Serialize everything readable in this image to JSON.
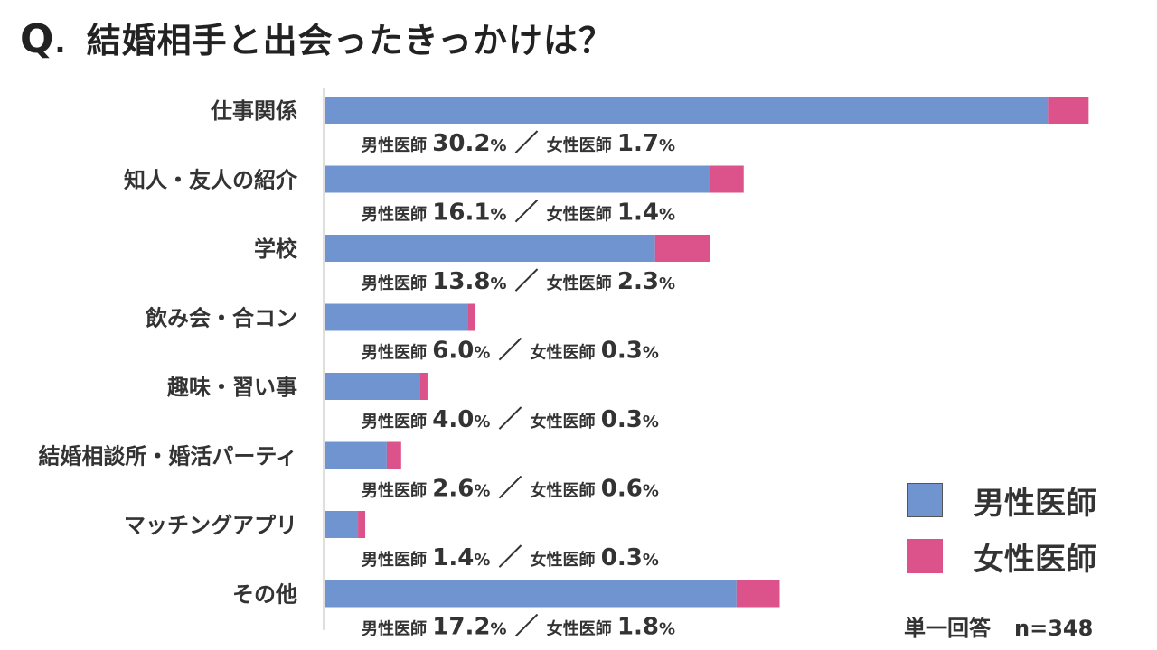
{
  "title": {
    "q": "Q",
    "dot": ".",
    "text": "結婚相手と出会ったきっかけは？"
  },
  "legend": [
    {
      "name": "男性医師",
      "color": "#6f94d0"
    },
    {
      "name": "女性医師",
      "color": "#dc528a"
    }
  ],
  "note": {
    "answer_type": "単一回答",
    "n": "n=348"
  },
  "chart_data": {
    "type": "bar",
    "orientation": "horizontal",
    "stacked": true,
    "categories": [
      "仕事関係",
      "知人・友人の紹介",
      "学校",
      "飲み会・合コン",
      "趣味・習い事",
      "結婚相談所・婚活パーティ",
      "マッチングアプリ",
      "その他"
    ],
    "series": [
      {
        "name": "男性医師",
        "values": [
          30.2,
          16.1,
          13.8,
          6.0,
          4.0,
          2.6,
          1.4,
          17.2
        ],
        "color": "#6f94d0"
      },
      {
        "name": "女性医師",
        "values": [
          1.7,
          1.4,
          2.3,
          0.3,
          0.3,
          0.6,
          0.3,
          1.8
        ],
        "color": "#dc528a"
      }
    ],
    "value_labels": [
      {
        "m": "30.2",
        "f": "1.7"
      },
      {
        "m": "16.1",
        "f": "1.4"
      },
      {
        "m": "13.8",
        "f": "2.3"
      },
      {
        "m": "6.0",
        "f": "0.3"
      },
      {
        "m": "4.0",
        "f": "0.3"
      },
      {
        "m": "2.6",
        "f": "0.6"
      },
      {
        "m": "1.4",
        "f": "0.3"
      },
      {
        "m": "17.2",
        "f": "1.8"
      }
    ],
    "separator": "／",
    "unit": "%",
    "grid": false,
    "legend_position": "bottom-right"
  }
}
